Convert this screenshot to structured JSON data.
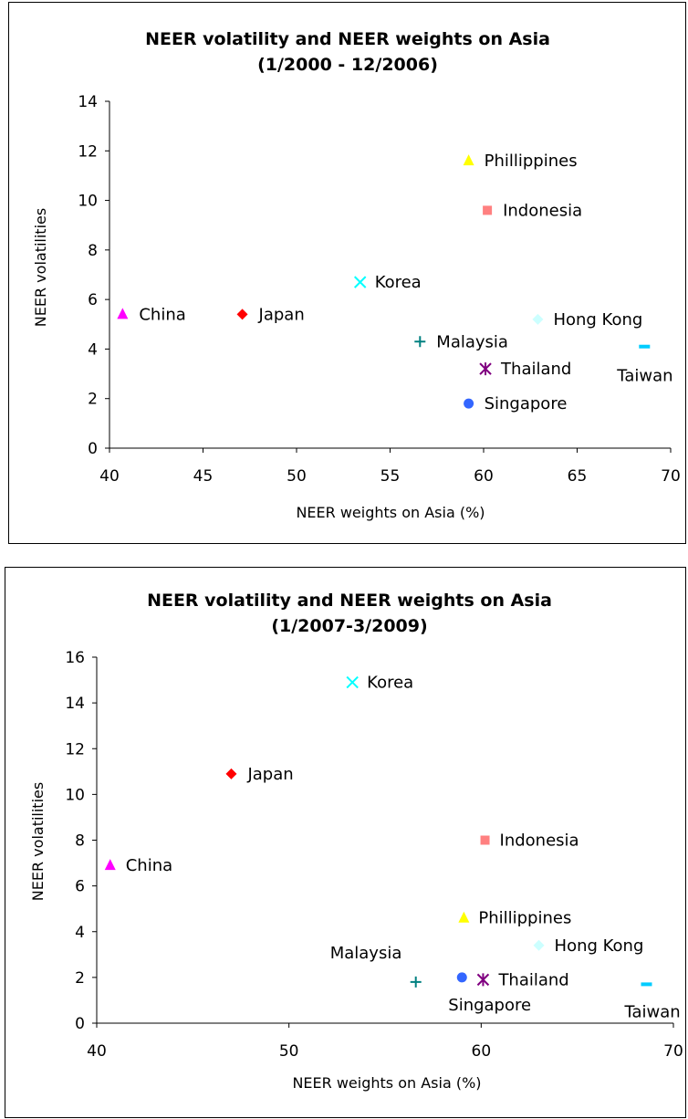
{
  "chart_data": [
    {
      "type": "scatter",
      "title": "NEER volatility and NEER weights on Asia",
      "subtitle": "(1/2000 - 12/2006)",
      "xlabel": "NEER weights on Asia (%)",
      "ylabel": "NEER volatilities",
      "xlim": [
        40,
        70
      ],
      "ylim": [
        0,
        14
      ],
      "x_ticks": [
        "40",
        "45",
        "50",
        "55",
        "60",
        "65",
        "70"
      ],
      "y_ticks": [
        "0",
        "2",
        "4",
        "6",
        "8",
        "10",
        "12",
        "14"
      ],
      "grid": false,
      "legend": "none",
      "points": [
        {
          "label": "China",
          "x": 40.7,
          "y": 5.4,
          "marker": "triangle",
          "color": "#FF00FF"
        },
        {
          "label": "Japan",
          "x": 47.1,
          "y": 5.4,
          "marker": "diamond",
          "color": "#FF0000"
        },
        {
          "label": "Korea",
          "x": 53.4,
          "y": 6.7,
          "marker": "x",
          "color": "#00FFFF"
        },
        {
          "label": "Malaysia",
          "x": 56.6,
          "y": 4.3,
          "marker": "plus",
          "color": "#008080"
        },
        {
          "label": "Phillippines",
          "x": 59.2,
          "y": 11.6,
          "marker": "triangle",
          "color": "#FFFF00"
        },
        {
          "label": "Indonesia",
          "x": 60.2,
          "y": 9.6,
          "marker": "square",
          "color": "#FF8080"
        },
        {
          "label": "Thailand",
          "x": 60.1,
          "y": 3.2,
          "marker": "star",
          "color": "#800080"
        },
        {
          "label": "Singapore",
          "x": 59.2,
          "y": 1.8,
          "marker": "circle",
          "color": "#3366FF"
        },
        {
          "label": "Hong Kong",
          "x": 62.9,
          "y": 5.2,
          "marker": "diamond",
          "color": "#CCFFFF"
        },
        {
          "label": "Taiwan",
          "x": 68.6,
          "y": 4.1,
          "marker": "dash",
          "color": "#00CCFF"
        }
      ]
    },
    {
      "type": "scatter",
      "title": "NEER volatility and NEER weights on Asia",
      "subtitle": "(1/2007-3/2009)",
      "xlabel": "NEER weights on Asia (%)",
      "ylabel": "NEER volatilities",
      "xlim": [
        40,
        70
      ],
      "ylim": [
        0,
        16
      ],
      "x_ticks": [
        "40",
        "50",
        "60",
        "70"
      ],
      "y_ticks": [
        "0",
        "2",
        "4",
        "6",
        "8",
        "10",
        "12",
        "14",
        "16"
      ],
      "grid": false,
      "legend": "none",
      "points": [
        {
          "label": "Korea",
          "x": 53.3,
          "y": 14.9,
          "marker": "x",
          "color": "#00FFFF"
        },
        {
          "label": "Japan",
          "x": 47.0,
          "y": 10.9,
          "marker": "diamond",
          "color": "#FF0000"
        },
        {
          "label": "Indonesia",
          "x": 60.2,
          "y": 8.0,
          "marker": "square",
          "color": "#FF8080"
        },
        {
          "label": "China",
          "x": 40.7,
          "y": 6.9,
          "marker": "triangle",
          "color": "#FF00FF"
        },
        {
          "label": "Phillippines",
          "x": 59.1,
          "y": 4.6,
          "marker": "triangle",
          "color": "#FFFF00"
        },
        {
          "label": "Hong Kong",
          "x": 63.0,
          "y": 3.4,
          "marker": "diamond",
          "color": "#CCFFFF"
        },
        {
          "label": "Malaysia",
          "x": 56.6,
          "y": 1.8,
          "marker": "plus",
          "color": "#008080"
        },
        {
          "label": "Singapore",
          "x": 59.0,
          "y": 2.0,
          "marker": "circle",
          "color": "#3366FF"
        },
        {
          "label": "Thailand",
          "x": 60.1,
          "y": 1.9,
          "marker": "star",
          "color": "#800080"
        },
        {
          "label": "Taiwan",
          "x": 68.6,
          "y": 1.7,
          "marker": "dash",
          "color": "#00CCFF"
        }
      ]
    }
  ]
}
